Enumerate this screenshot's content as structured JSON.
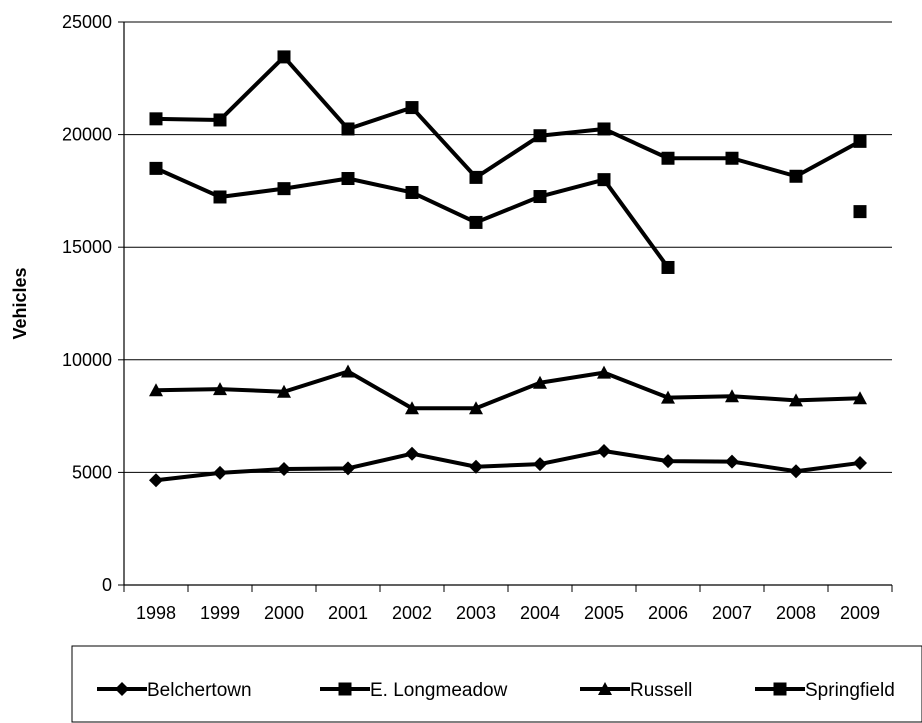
{
  "chart_data": {
    "type": "line",
    "title": "",
    "xlabel": "",
    "ylabel": "Vehicles",
    "ylim": [
      0,
      25000
    ],
    "yticks": [
      0,
      5000,
      10000,
      15000,
      20000,
      25000
    ],
    "categories": [
      "1998",
      "1999",
      "2000",
      "2001",
      "2002",
      "2003",
      "2004",
      "2005",
      "2006",
      "2007",
      "2008",
      "2009"
    ],
    "grid": "horizontal",
    "legend_position": "bottom",
    "series": [
      {
        "name": "Belchertown",
        "marker": "diamond",
        "color": "#000000",
        "values": [
          4650,
          4980,
          5150,
          5180,
          5830,
          5250,
          5370,
          5950,
          5500,
          5480,
          5050,
          5420
        ]
      },
      {
        "name": "E. Longmeadow",
        "marker": "square",
        "color": "#000000",
        "values": [
          20700,
          20650,
          23450,
          20250,
          21200,
          18100,
          19950,
          20250,
          18950,
          18950,
          18150,
          19700
        ]
      },
      {
        "name": "Russell",
        "marker": "triangle",
        "color": "#000000",
        "values": [
          8650,
          8700,
          8580,
          9480,
          7850,
          7850,
          8980,
          9430,
          8320,
          8380,
          8200,
          8290
        ]
      },
      {
        "name": "Springfield",
        "marker": "square",
        "color": "#000000",
        "values": [
          18500,
          17230,
          17600,
          18050,
          17430,
          16100,
          17250,
          18000,
          14100,
          null,
          null,
          16580
        ]
      }
    ]
  }
}
